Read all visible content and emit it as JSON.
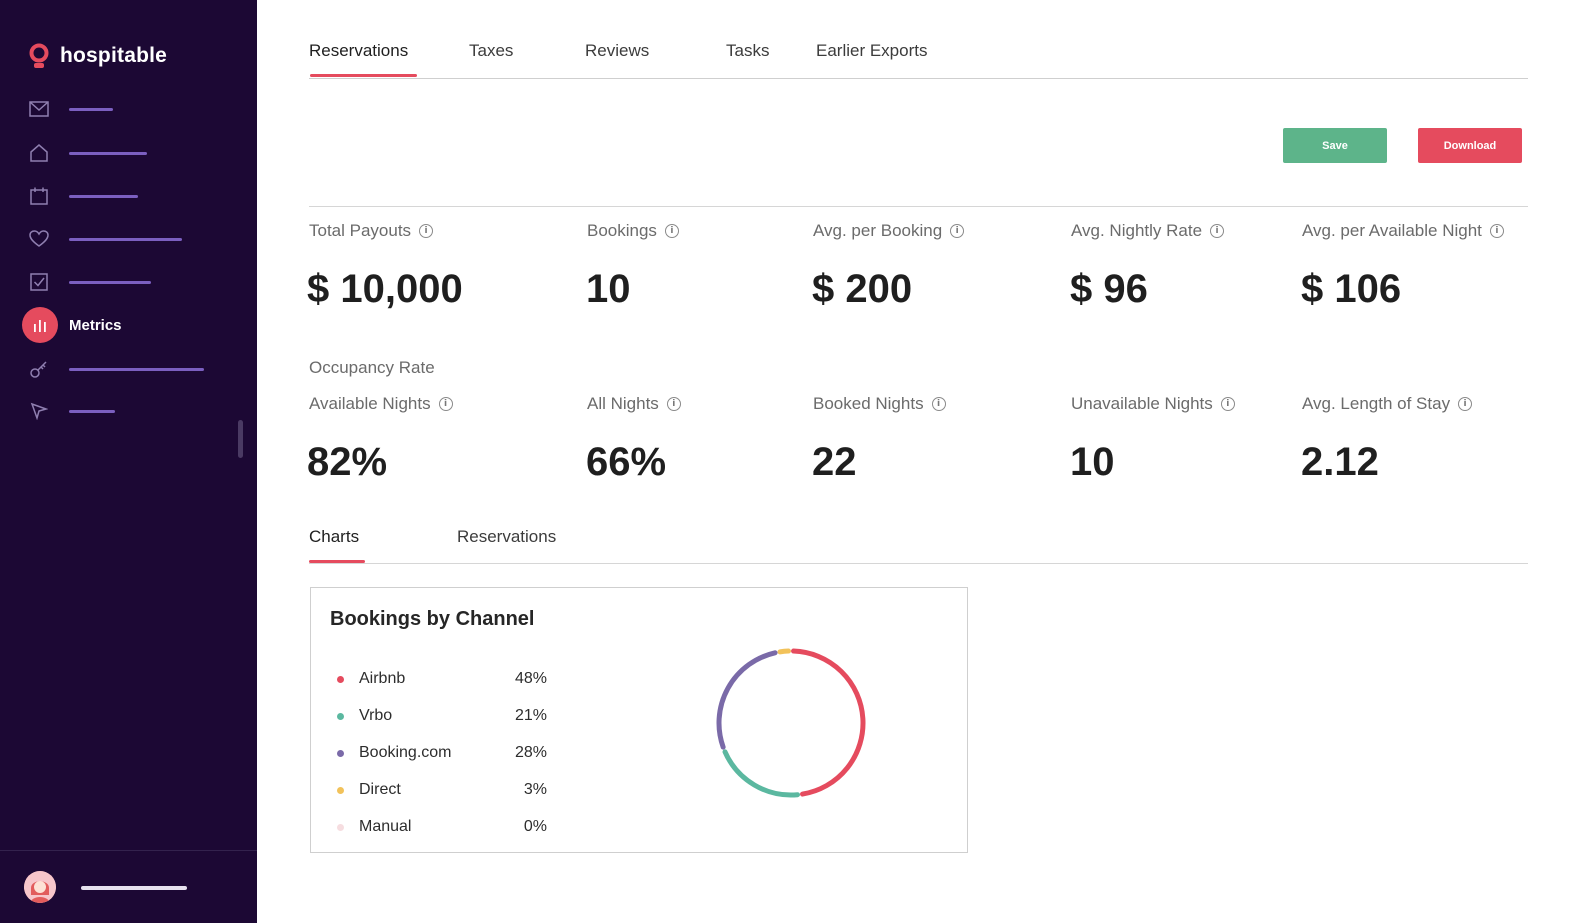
{
  "app": {
    "name": "hospitable"
  },
  "sidebar": {
    "active_item": "Metrics",
    "icons": [
      "mail-icon",
      "home-icon",
      "calendar-icon",
      "heart-icon",
      "checkbox-icon",
      "chart-icon",
      "key-icon",
      "send-icon"
    ]
  },
  "tabs": [
    {
      "label": "Reservations",
      "active": true
    },
    {
      "label": "Taxes"
    },
    {
      "label": "Reviews"
    },
    {
      "label": "Tasks"
    },
    {
      "label": "Earlier Exports"
    }
  ],
  "actions": {
    "save_label": "Save",
    "download_label": "Download"
  },
  "metrics": {
    "row1": [
      {
        "label": "Total Payouts",
        "value": "$ 10,000"
      },
      {
        "label": "Bookings",
        "value": "10"
      },
      {
        "label": "Avg. per Booking",
        "value": "$ 200"
      },
      {
        "label": "Avg. Nightly Rate",
        "value": "$ 96"
      },
      {
        "label": "Avg. per Available Night",
        "value": "$ 106"
      }
    ],
    "occupancy_title": "Occupancy Rate",
    "row2": [
      {
        "label": "Available Nights",
        "value": "82%"
      },
      {
        "label": "All Nights",
        "value": "66%"
      },
      {
        "label": "Booked Nights",
        "value": "22"
      },
      {
        "label": "Unavailable Nights",
        "value": "10"
      },
      {
        "label": "Avg. Length of Stay",
        "value": "2.12"
      }
    ]
  },
  "subtabs": [
    {
      "label": "Charts",
      "active": true
    },
    {
      "label": "Reservations"
    }
  ],
  "chart_data": {
    "type": "pie",
    "title": "Bookings by Channel",
    "categories": [
      "Airbnb",
      "Vrbo",
      "Booking.com",
      "Direct",
      "Manual"
    ],
    "labels": [
      "48%",
      "21%",
      "28%",
      "3%",
      "0%"
    ],
    "values": [
      48,
      21,
      28,
      3,
      0
    ],
    "colors": [
      "#e54b5e",
      "#5bb8a0",
      "#7a6aa8",
      "#f2c25a",
      "#f6dde0"
    ],
    "legend": "left"
  }
}
